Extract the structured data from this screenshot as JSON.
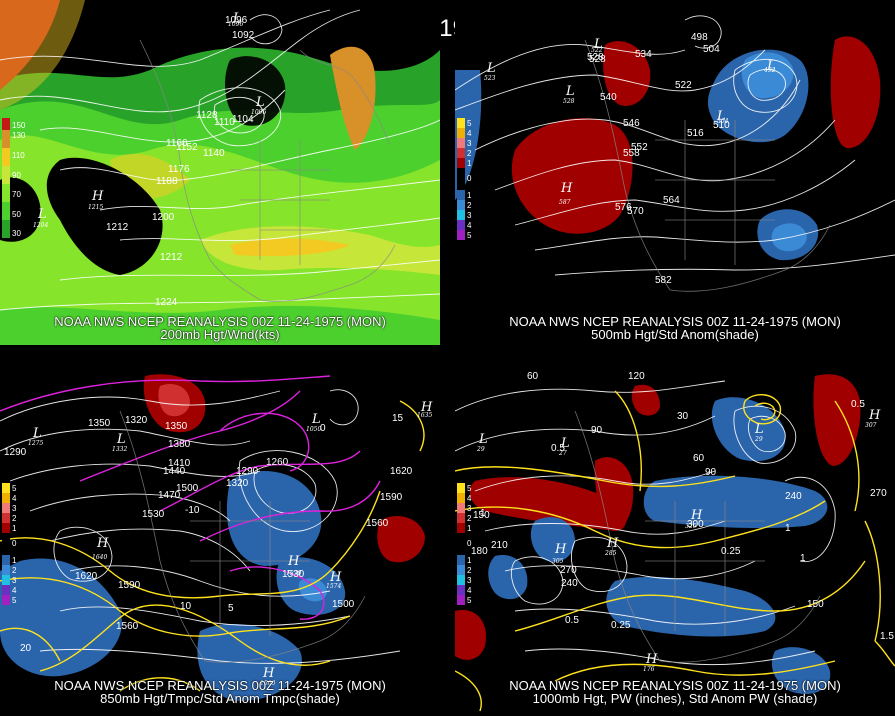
{
  "title": "00Z 11-24-1975 (MON)",
  "panels": [
    {
      "line1": "NOAA NWS NCEP REANALYSIS 00Z 11-24-1975 (MON)",
      "line2": "200mb Hgt/Wnd(kts)",
      "legend": [
        "150",
        "130",
        "110",
        "90",
        "70",
        "50",
        "30"
      ],
      "contour_labels": [
        "1092",
        "1096",
        "1104",
        "1110",
        "1128",
        "1140",
        "1152",
        "1166",
        "1176",
        "1188",
        "1200",
        "1212",
        "1212",
        "1224"
      ],
      "centers": [
        {
          "type": "L",
          "value": "1096"
        },
        {
          "type": "L",
          "value": "1096"
        },
        {
          "type": "H",
          "value": "1215"
        },
        {
          "type": "L",
          "value": "1204"
        }
      ]
    },
    {
      "line1": "NOAA NWS NCEP REANALYSIS 00Z 11-24-1975 (MON)",
      "line2": "500mb Hgt/Std Anom(shade)",
      "legend": [
        "5",
        "4",
        "3",
        "2",
        "1",
        "0",
        "1",
        "2",
        "3",
        "4",
        "5"
      ],
      "contour_labels": [
        "522",
        "528",
        "534",
        "540",
        "546",
        "552",
        "558",
        "564",
        "570",
        "576",
        "582",
        "498",
        "504",
        "510",
        "516",
        "528"
      ],
      "centers": [
        {
          "type": "L",
          "value": "522"
        },
        {
          "type": "L",
          "value": "523"
        },
        {
          "type": "L",
          "value": "528"
        },
        {
          "type": "H",
          "value": "587"
        },
        {
          "type": "L",
          "value": "504"
        },
        {
          "type": "L",
          "value": "492"
        }
      ]
    },
    {
      "line1": "NOAA NWS NCEP REANALYSIS 00Z 11-24-1975 (MON)",
      "line2": "850mb Hgt/Tmpc/Std Anom Tmpc(shade)",
      "legend": [
        "5",
        "4",
        "3",
        "2",
        "1",
        "0",
        "1",
        "2",
        "3",
        "4",
        "5"
      ],
      "contour_labels": [
        "1290",
        "1350",
        "1320",
        "1380",
        "1410",
        "1440",
        "1470",
        "1500",
        "1530",
        "1560",
        "1590",
        "1620",
        "1620",
        "1590",
        "1560",
        "1320",
        "1290",
        "1260",
        "1530",
        "1500",
        "1350",
        "-10",
        "10",
        "5",
        "20",
        "15",
        "0"
      ],
      "centers": [
        {
          "type": "L",
          "value": "1275"
        },
        {
          "type": "L",
          "value": "1332"
        },
        {
          "type": "L",
          "value": "1050"
        },
        {
          "type": "H",
          "value": "1640"
        },
        {
          "type": "H",
          "value": "1635"
        },
        {
          "type": "H",
          "value": "1530"
        },
        {
          "type": "H",
          "value": "1574"
        },
        {
          "type": "H",
          "value": "1560"
        }
      ]
    },
    {
      "line1": "NOAA NWS NCEP REANALYSIS 00Z 11-24-1975 (MON)",
      "line2": "1000mb Hgt, PW (inches), Std Anom PW (shade)",
      "legend": [
        "5",
        "4",
        "3",
        "2",
        "1",
        "0",
        "1",
        "2",
        "3",
        "4",
        "5"
      ],
      "contour_labels": [
        "60",
        "120",
        "30",
        "90",
        "60",
        "90",
        "150",
        "180",
        "210",
        "240",
        "270",
        "300",
        "240",
        "270",
        "150",
        "0.5",
        "1",
        "0.25",
        "0.5",
        "0.25",
        "1",
        "1.5",
        "0.5",
        "1"
      ],
      "centers": [
        {
          "type": "L",
          "value": "29"
        },
        {
          "type": "L",
          "value": "27"
        },
        {
          "type": "L",
          "value": "29"
        },
        {
          "type": "H",
          "value": "305"
        },
        {
          "type": "H",
          "value": "285"
        },
        {
          "type": "H",
          "value": "307"
        },
        {
          "type": "H",
          "value": "326"
        },
        {
          "type": "H",
          "value": "176"
        }
      ]
    }
  ],
  "colors": {
    "wind_30": "#29a229",
    "wind_50": "#4cd02e",
    "wind_70": "#86e42a",
    "wind_90": "#c6e63a",
    "wind_110": "#f2ca22",
    "wind_130": "#d89028",
    "wind_150": "#c41818",
    "anom_pos": "#a00000",
    "anom_neg": "#2a64aa",
    "temp_neg": "#dd22dd",
    "yellow": "#ffe21c"
  }
}
